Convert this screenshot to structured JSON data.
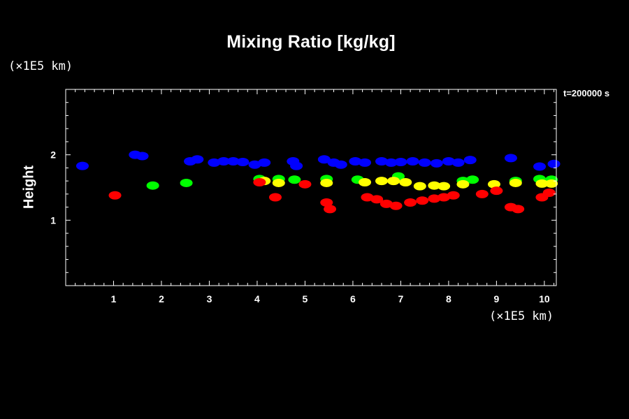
{
  "chart_data": {
    "type": "scatter",
    "title": "Mixing Ratio [kg/kg]",
    "xlabel": "",
    "ylabel": "Height",
    "x_unit": "(×1E5 km)",
    "y_unit": "(×1E5 km)",
    "time_label": "t=200000 s",
    "xlim": [
      0,
      10.25
    ],
    "ylim": [
      0,
      3
    ],
    "x_ticks": [
      1,
      2,
      3,
      4,
      5,
      6,
      7,
      8,
      9,
      10
    ],
    "y_ticks": [
      1,
      2
    ],
    "grid": false,
    "background": "#000000",
    "series": [
      {
        "color": "#0000ff",
        "patches": [
          {
            "x": 0.35,
            "y": 1.83
          },
          {
            "x": 1.45,
            "y": 2.0
          },
          {
            "x": 1.6,
            "y": 1.98
          },
          {
            "x": 2.6,
            "y": 1.9
          },
          {
            "x": 2.75,
            "y": 1.93
          },
          {
            "x": 3.1,
            "y": 1.88
          },
          {
            "x": 3.3,
            "y": 1.9
          },
          {
            "x": 3.5,
            "y": 1.9
          },
          {
            "x": 3.7,
            "y": 1.89
          },
          {
            "x": 3.95,
            "y": 1.85
          },
          {
            "x": 4.15,
            "y": 1.88
          },
          {
            "x": 4.75,
            "y": 1.9
          },
          {
            "x": 4.82,
            "y": 1.83
          },
          {
            "x": 5.4,
            "y": 1.93
          },
          {
            "x": 5.6,
            "y": 1.88
          },
          {
            "x": 5.75,
            "y": 1.85
          },
          {
            "x": 6.05,
            "y": 1.9
          },
          {
            "x": 6.25,
            "y": 1.88
          },
          {
            "x": 6.6,
            "y": 1.9
          },
          {
            "x": 6.8,
            "y": 1.88
          },
          {
            "x": 7.0,
            "y": 1.89
          },
          {
            "x": 7.25,
            "y": 1.9
          },
          {
            "x": 7.5,
            "y": 1.88
          },
          {
            "x": 7.75,
            "y": 1.87
          },
          {
            "x": 8.0,
            "y": 1.9
          },
          {
            "x": 8.2,
            "y": 1.88
          },
          {
            "x": 8.45,
            "y": 1.92
          },
          {
            "x": 9.3,
            "y": 1.95
          },
          {
            "x": 9.9,
            "y": 1.82
          },
          {
            "x": 10.2,
            "y": 1.86
          }
        ]
      },
      {
        "color": "#00ff00",
        "patches": [
          {
            "x": 1.82,
            "y": 1.53
          },
          {
            "x": 2.52,
            "y": 1.57
          },
          {
            "x": 4.05,
            "y": 1.63
          },
          {
            "x": 4.45,
            "y": 1.63
          },
          {
            "x": 4.78,
            "y": 1.62
          },
          {
            "x": 5.45,
            "y": 1.63
          },
          {
            "x": 6.1,
            "y": 1.62
          },
          {
            "x": 6.95,
            "y": 1.67
          },
          {
            "x": 8.3,
            "y": 1.6
          },
          {
            "x": 8.5,
            "y": 1.62
          },
          {
            "x": 9.4,
            "y": 1.6
          },
          {
            "x": 9.9,
            "y": 1.63
          },
          {
            "x": 10.15,
            "y": 1.62
          }
        ]
      },
      {
        "color": "#ffff00",
        "patches": [
          {
            "x": 4.15,
            "y": 1.6
          },
          {
            "x": 4.45,
            "y": 1.57
          },
          {
            "x": 5.45,
            "y": 1.57
          },
          {
            "x": 6.25,
            "y": 1.58
          },
          {
            "x": 6.6,
            "y": 1.6
          },
          {
            "x": 6.85,
            "y": 1.6
          },
          {
            "x": 7.1,
            "y": 1.58
          },
          {
            "x": 7.4,
            "y": 1.52
          },
          {
            "x": 7.7,
            "y": 1.53
          },
          {
            "x": 7.9,
            "y": 1.52
          },
          {
            "x": 8.3,
            "y": 1.55
          },
          {
            "x": 8.95,
            "y": 1.55
          },
          {
            "x": 9.4,
            "y": 1.57
          },
          {
            "x": 9.95,
            "y": 1.56
          },
          {
            "x": 10.15,
            "y": 1.56
          }
        ]
      },
      {
        "color": "#ff0000",
        "patches": [
          {
            "x": 1.03,
            "y": 1.38
          },
          {
            "x": 4.05,
            "y": 1.58
          },
          {
            "x": 4.38,
            "y": 1.35
          },
          {
            "x": 5.45,
            "y": 1.27
          },
          {
            "x": 5.52,
            "y": 1.17
          },
          {
            "x": 5.0,
            "y": 1.55
          },
          {
            "x": 6.3,
            "y": 1.35
          },
          {
            "x": 6.5,
            "y": 1.32
          },
          {
            "x": 6.7,
            "y": 1.25
          },
          {
            "x": 6.9,
            "y": 1.22
          },
          {
            "x": 7.2,
            "y": 1.27
          },
          {
            "x": 7.45,
            "y": 1.3
          },
          {
            "x": 7.7,
            "y": 1.33
          },
          {
            "x": 7.9,
            "y": 1.35
          },
          {
            "x": 8.1,
            "y": 1.38
          },
          {
            "x": 8.7,
            "y": 1.4
          },
          {
            "x": 9.0,
            "y": 1.45
          },
          {
            "x": 9.3,
            "y": 1.2
          },
          {
            "x": 9.45,
            "y": 1.17
          },
          {
            "x": 9.95,
            "y": 1.35
          },
          {
            "x": 10.1,
            "y": 1.42
          }
        ]
      }
    ]
  }
}
